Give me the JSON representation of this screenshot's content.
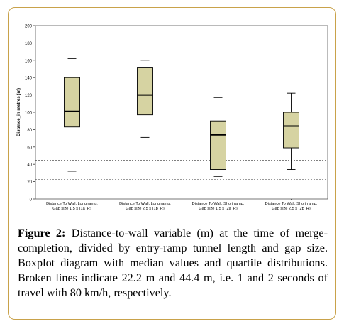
{
  "chart_data": {
    "type": "boxplot",
    "ylabel": "Distance_in metres (m)",
    "ylim": [
      0,
      200
    ],
    "yticks": [
      0,
      20,
      40,
      60,
      80,
      100,
      120,
      140,
      160,
      180,
      200
    ],
    "grid": false,
    "categories": [
      [
        "Distance To Wall, Long ramp,",
        "Gap size 1.5 s (1a_R)"
      ],
      [
        "Distance To Wall, Long ramp,",
        "Gap size 2.5 s (1b_R)"
      ],
      [
        "Distance To Wall, Short ramp,",
        "Gap size 1.5 s (2a_R)"
      ],
      [
        "Distance To Wall, Short ramp,",
        "Gap size 2.5 s (2b_R)"
      ]
    ],
    "boxes": [
      {
        "min": 32,
        "q1": 83,
        "median": 101,
        "q3": 140,
        "max": 162
      },
      {
        "min": 71,
        "q1": 97,
        "median": 120,
        "q3": 152,
        "max": 160
      },
      {
        "min": 26,
        "q1": 34,
        "median": 74,
        "q3": 90,
        "max": 117
      },
      {
        "min": 34,
        "q1": 59,
        "median": 84,
        "q3": 100,
        "max": 122
      }
    ],
    "reference_lines": [
      22.2,
      44.4
    ],
    "box_color": "#d6d3a2"
  },
  "caption": {
    "label": "Figure 2:",
    "text": " Distance-to-wall variable (m) at the time of merge-completion, divided by entry-ramp tunnel length and gap size. Boxplot diagram with median values and quartile distributions. Broken lines indicate 22.2 m and 44.4 m, i.e. 1 and 2 seconds of travel with 80 km/h, respectively."
  }
}
